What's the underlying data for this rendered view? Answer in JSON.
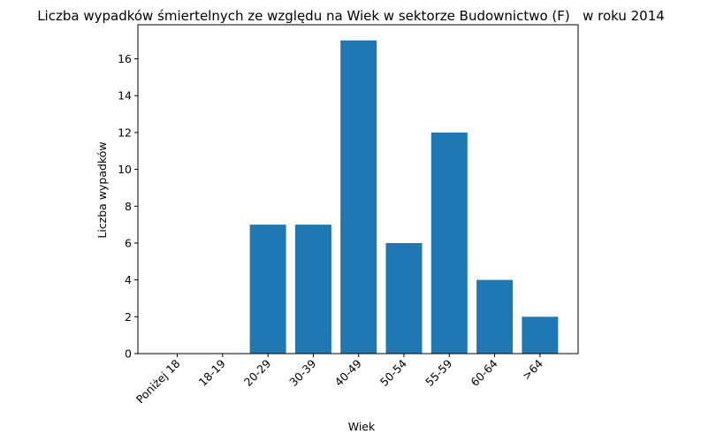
{
  "chart_data": {
    "type": "bar",
    "title": "Liczba wypadków śmiertelnych ze względu na Wiek w sektorze Budownictwo (F)   w roku 2014",
    "xlabel": "Wiek",
    "ylabel": "Liczba wypadków",
    "categories": [
      "Poniżej 18",
      "18-19",
      "20-29",
      "30-39",
      "40-49",
      "50-54",
      "55-59",
      "60-64",
      ">64"
    ],
    "values": [
      0,
      0,
      7,
      7,
      17,
      6,
      12,
      4,
      2
    ],
    "ylim": [
      0,
      17.85
    ],
    "yticks": [
      "0",
      "2",
      "4",
      "6",
      "8",
      "10",
      "12",
      "14",
      "16"
    ],
    "bar_color": "#1f77b4",
    "grid": false,
    "legend": "none"
  }
}
